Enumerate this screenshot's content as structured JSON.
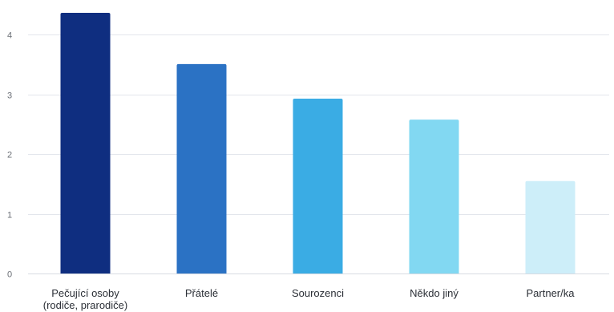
{
  "chart_data": {
    "type": "bar",
    "categories": [
      "Pečující osoby (rodiče, prarodiče)",
      "Přátelé",
      "Sourozenci",
      "Někdo jiný",
      "Partner/ka"
    ],
    "category_lines": [
      [
        "Pečující osoby",
        "(rodiče, prarodiče)"
      ],
      [
        "Přátelé"
      ],
      [
        "Sourozenci"
      ],
      [
        "Někdo jiný"
      ],
      [
        "Partner/ka"
      ]
    ],
    "values": [
      4.37,
      3.51,
      2.93,
      2.58,
      1.55
    ],
    "bar_colors": [
      "#0f2e80",
      "#2b72c4",
      "#3aace4",
      "#82d8f2",
      "#cdeef9"
    ],
    "ylim": [
      0,
      4.45
    ],
    "yticks": [
      0,
      1,
      2,
      3,
      4
    ],
    "grid": true,
    "title": "",
    "xlabel": "",
    "ylabel": ""
  }
}
